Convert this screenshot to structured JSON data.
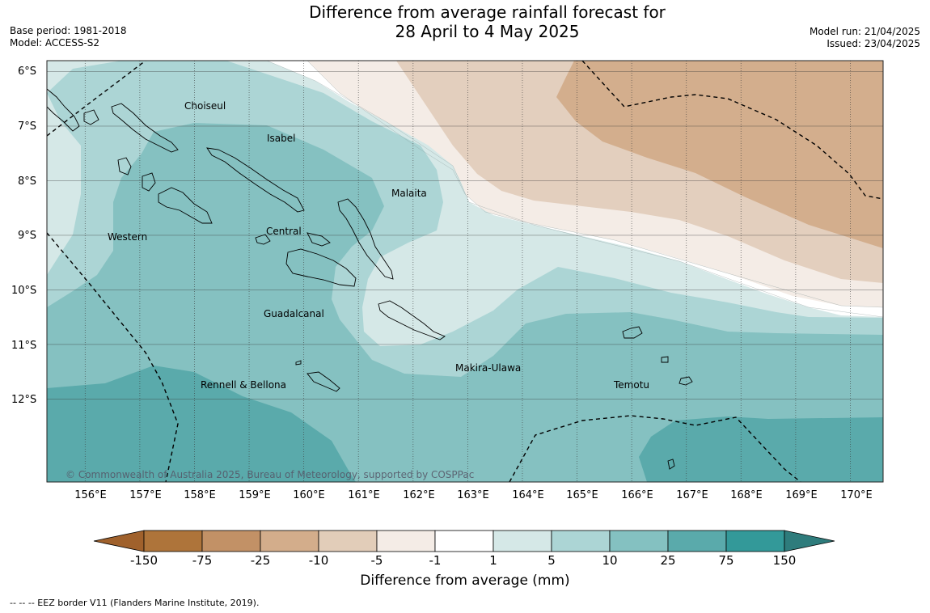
{
  "title_line1": "Difference from average rainfall forecast for",
  "title_line2": "28 April to 4 May 2025",
  "base_period": "Base period: 1981-2018",
  "model": "Model: ACCESS-S2",
  "model_run": "Model run: 21/04/2025",
  "issued": "Issued: 23/04/2025",
  "lat_labels": [
    "6°S",
    "7°S",
    "8°S",
    "9°S",
    "10°S",
    "11°S",
    "12°S"
  ],
  "lon_labels": [
    "156°E",
    "157°E",
    "158°E",
    "159°E",
    "160°E",
    "161°E",
    "162°E",
    "163°E",
    "164°E",
    "165°E",
    "166°E",
    "167°E",
    "168°E",
    "169°E",
    "170°E"
  ],
  "regions": [
    "Choiseul",
    "Isabel",
    "Malaita",
    "Western",
    "Central",
    "Guadalcanal",
    "Makira-Ulawa",
    "Rennell & Bellona",
    "Temotu"
  ],
  "copyright": "© Commonwealth of Australia 2025, Bureau of Meteorology, supported by COSPPac",
  "colorbar": {
    "labels": [
      "-150",
      "-75",
      "-25",
      "-10",
      "-5",
      "-1",
      "1",
      "5",
      "10",
      "25",
      "75",
      "150"
    ],
    "title": "Difference from average (mm)",
    "colors": [
      "#ae743a",
      "#c29166",
      "#d3ad8b",
      "#e2cdb9",
      "#f4ece6",
      "#ffffff",
      "#d5e8e7",
      "#acd5d5",
      "#84c1c1",
      "#5aaaab",
      "#339999"
    ],
    "under_color": "#a0612c",
    "over_color": "#2e7c7c"
  },
  "footnote": "--  --  -- EEZ border V11 (Flanders Marine Institute, 2019).",
  "colors": {
    "dry_10": "#d3ae8d",
    "dry_5": "#e3cfbe",
    "dry_1": "#f4ece6",
    "wet_1": "#d5e8e7",
    "wet_5": "#acd5d5",
    "wet_10": "#85c1c1",
    "wet_25": "#5aaaab"
  }
}
